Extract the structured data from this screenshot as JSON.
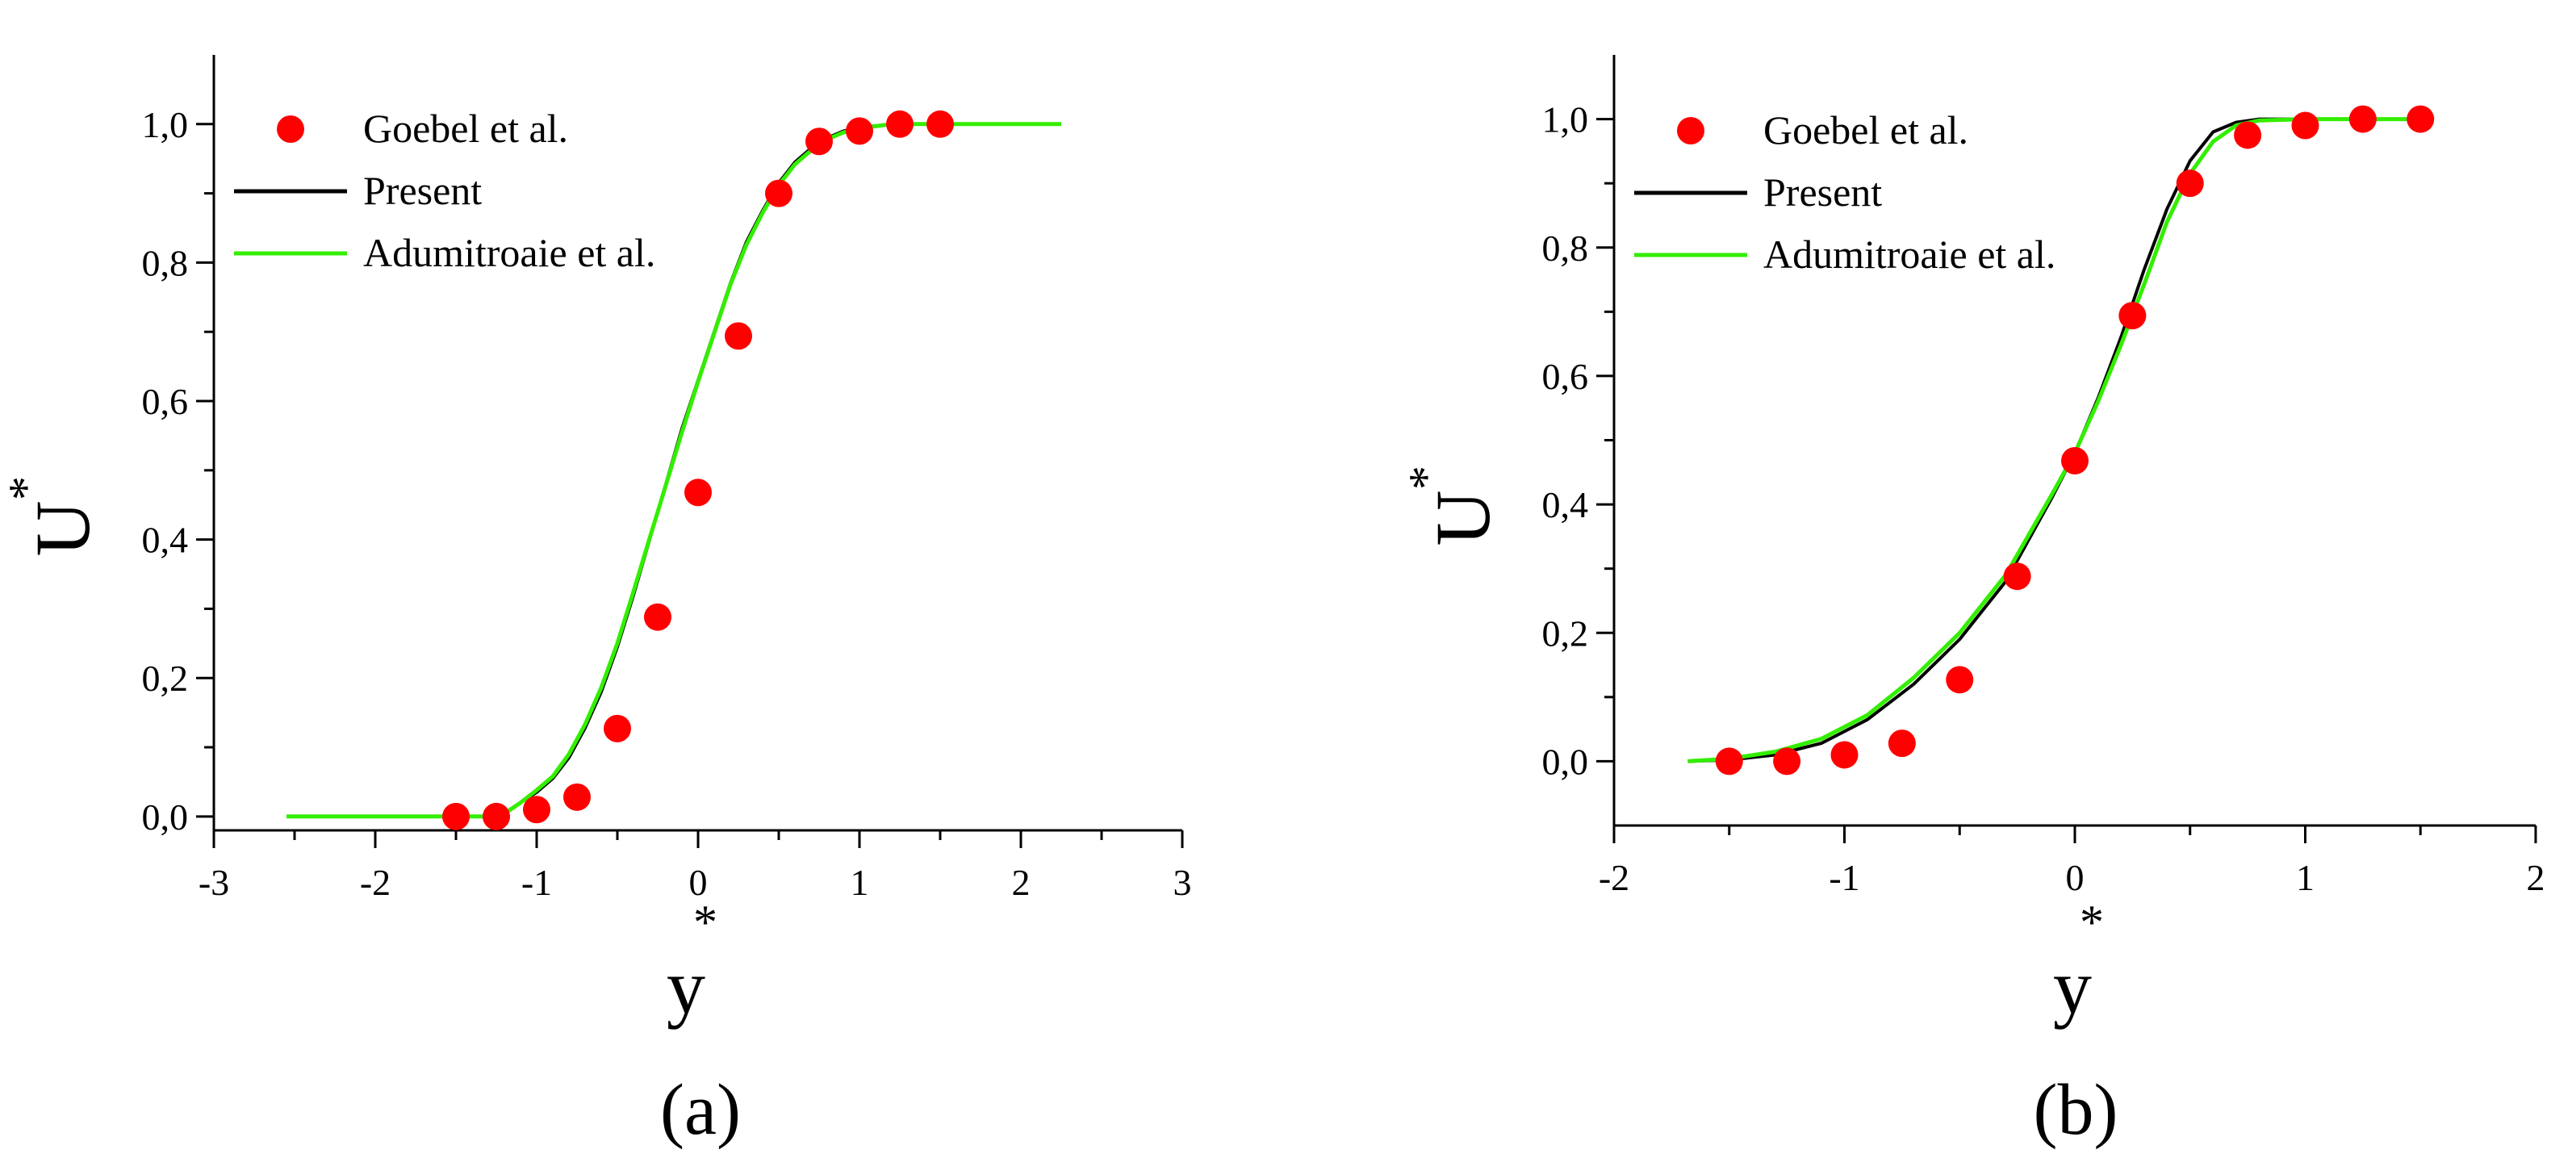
{
  "figure": {
    "panels": [
      "(a)",
      "(b)"
    ]
  },
  "chart_data": [
    {
      "type": "line",
      "panel_label": "(a)",
      "xlabel": "y",
      "xlabel_superscript": "*",
      "ylabel": "U",
      "ylabel_superscript": "*",
      "xlim": [
        -3,
        3
      ],
      "ylim": [
        -0.02,
        1.1
      ],
      "x_ticks": [
        -3,
        -2,
        -1,
        0,
        1,
        2,
        3
      ],
      "x_tick_labels": [
        "-3",
        "-2",
        "-1",
        "0",
        "1",
        "2",
        "3"
      ],
      "y_ticks": [
        0.0,
        0.2,
        0.4,
        0.6,
        0.8,
        1.0
      ],
      "y_tick_labels": [
        "0,0",
        "0,2",
        "0,4",
        "0,6",
        "0,8",
        "1,0"
      ],
      "grid": false,
      "legend_position": "top-left",
      "series": [
        {
          "name": "Goebel et al.",
          "kind": "scatter",
          "color": "#ff0000",
          "x": [
            -1.5,
            -1.25,
            -1.0,
            -0.75,
            -0.5,
            -0.25,
            0.0,
            0.25,
            0.5,
            0.75,
            1.0,
            1.25,
            1.5
          ],
          "y": [
            0.0,
            0.0,
            0.01,
            0.028,
            0.127,
            0.288,
            0.468,
            0.694,
            0.9,
            0.975,
            0.99,
            1.0,
            1.0
          ]
        },
        {
          "name": "Present",
          "kind": "line",
          "color": "#000000",
          "x": [
            -2.55,
            -1.3,
            -1.2,
            -1.1,
            -1.0,
            -0.9,
            -0.8,
            -0.7,
            -0.6,
            -0.5,
            -0.4,
            -0.3,
            -0.2,
            -0.1,
            0.0,
            0.1,
            0.2,
            0.3,
            0.4,
            0.5,
            0.6,
            0.7,
            0.8,
            0.9,
            1.0,
            1.2,
            1.5,
            2.25
          ],
          "y": [
            0.0,
            0.0,
            0.005,
            0.02,
            0.035,
            0.055,
            0.085,
            0.128,
            0.18,
            0.245,
            0.32,
            0.4,
            0.48,
            0.56,
            0.63,
            0.7,
            0.77,
            0.83,
            0.875,
            0.915,
            0.945,
            0.965,
            0.98,
            0.99,
            0.995,
            1.0,
            1.0,
            1.0
          ]
        },
        {
          "name": "Adumitroaie et al.",
          "kind": "line",
          "color": "#33ee00",
          "x": [
            -2.55,
            -1.3,
            -1.2,
            -1.1,
            -1.0,
            -0.9,
            -0.8,
            -0.7,
            -0.6,
            -0.5,
            -0.4,
            -0.3,
            -0.2,
            -0.1,
            0.0,
            0.1,
            0.2,
            0.3,
            0.4,
            0.5,
            0.6,
            0.7,
            0.8,
            0.9,
            1.0,
            1.2,
            1.5,
            2.25
          ],
          "y": [
            0.0,
            0.0,
            0.004,
            0.02,
            0.038,
            0.058,
            0.09,
            0.133,
            0.186,
            0.25,
            0.325,
            0.402,
            0.478,
            0.555,
            0.628,
            0.698,
            0.768,
            0.826,
            0.872,
            0.912,
            0.942,
            0.962,
            0.978,
            0.988,
            0.994,
            1.0,
            1.0,
            1.0
          ]
        }
      ]
    },
    {
      "type": "line",
      "panel_label": "(b)",
      "xlabel": "y",
      "xlabel_superscript": "*",
      "ylabel": "U",
      "ylabel_superscript": "*",
      "xlim": [
        -2,
        2
      ],
      "ylim": [
        -0.1,
        1.1
      ],
      "x_ticks": [
        -2,
        -1,
        0,
        1,
        2
      ],
      "x_tick_labels": [
        "-2",
        "-1",
        "0",
        "1",
        "2"
      ],
      "y_ticks": [
        0.0,
        0.2,
        0.4,
        0.6,
        0.8,
        1.0
      ],
      "y_tick_labels": [
        "0,0",
        "0,2",
        "0,4",
        "0,6",
        "0,8",
        "1,0"
      ],
      "grid": false,
      "legend_position": "top-left",
      "series": [
        {
          "name": "Goebel et al.",
          "kind": "scatter",
          "color": "#ff0000",
          "x": [
            -1.5,
            -1.25,
            -1.0,
            -0.75,
            -0.5,
            -0.25,
            0.0,
            0.25,
            0.5,
            0.75,
            1.0,
            1.25,
            1.5
          ],
          "y": [
            0.0,
            0.0,
            0.01,
            0.028,
            0.127,
            0.288,
            0.468,
            0.694,
            0.9,
            0.975,
            0.99,
            1.0,
            1.0
          ]
        },
        {
          "name": "Present",
          "kind": "line",
          "color": "#000000",
          "x": [
            -1.68,
            -1.5,
            -1.3,
            -1.1,
            -0.9,
            -0.7,
            -0.5,
            -0.3,
            -0.1,
            0.0,
            0.1,
            0.2,
            0.3,
            0.4,
            0.5,
            0.6,
            0.7,
            0.8,
            1.0,
            1.5
          ],
          "y": [
            0.0,
            0.002,
            0.01,
            0.028,
            0.065,
            0.12,
            0.19,
            0.28,
            0.41,
            0.48,
            0.565,
            0.66,
            0.765,
            0.86,
            0.935,
            0.98,
            0.995,
            1.0,
            1.0,
            1.0
          ]
        },
        {
          "name": "Adumitroaie et al.",
          "kind": "line",
          "color": "#33ee00",
          "x": [
            -1.68,
            -1.5,
            -1.3,
            -1.1,
            -0.9,
            -0.7,
            -0.5,
            -0.3,
            -0.1,
            0.0,
            0.1,
            0.2,
            0.3,
            0.4,
            0.5,
            0.6,
            0.7,
            0.8,
            1.0,
            1.5
          ],
          "y": [
            0.0,
            0.004,
            0.015,
            0.035,
            0.072,
            0.13,
            0.2,
            0.29,
            0.415,
            0.48,
            0.56,
            0.648,
            0.742,
            0.84,
            0.915,
            0.965,
            0.99,
            0.998,
            1.0,
            1.0
          ]
        }
      ]
    }
  ]
}
